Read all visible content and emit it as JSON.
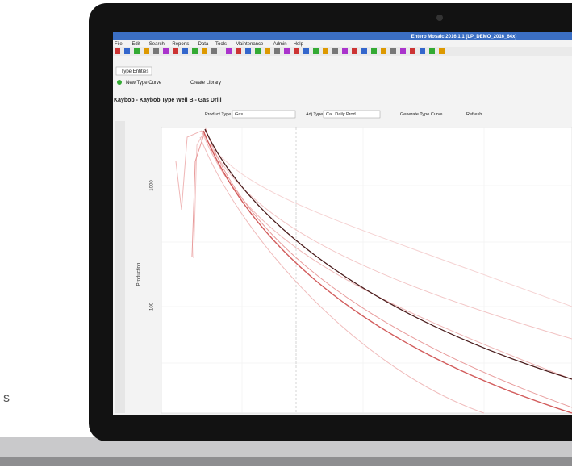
{
  "window": {
    "title": "Entero Mosaic 2016.1.1 (LP_DEMO_2016_64x)",
    "menu": [
      "File",
      "Edit",
      "Search",
      "Reports",
      "Data",
      "Tools",
      "Maintenance",
      "Admin",
      "Help"
    ],
    "tab": "Type Entities",
    "actions": [
      "New Type Curve",
      "Create Library"
    ],
    "heading": "Kaybob - Kaybob Type Well B - Gas Drill",
    "toolbar": {
      "product_type_label": "Product Type",
      "product_type": "Gas",
      "adj_type_label": "Adj Type",
      "adj_type": "Cal. Daily Prod.",
      "generate": "Generate Type Curve",
      "refresh": "Refresh"
    },
    "axis": {
      "label": "Production",
      "ticks": [
        "1000",
        "100"
      ]
    }
  },
  "fragment": "s"
}
